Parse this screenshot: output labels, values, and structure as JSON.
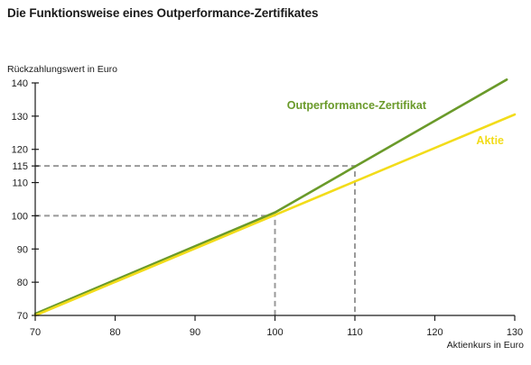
{
  "page": {
    "title": "Die Funktionsweise eines Outperformance-Zertifikates"
  },
  "chart_data": {
    "type": "line",
    "title": "Die Funktionsweise eines Outperformance-Zertifikates",
    "xlabel": "Aktienkurs in Euro",
    "ylabel": "Rückzahlungswert in Euro",
    "xlim": [
      70,
      130
    ],
    "ylim": [
      70,
      140
    ],
    "x_ticks": [
      70,
      80,
      90,
      100,
      110,
      120,
      130
    ],
    "y_ticks": [
      70,
      80,
      90,
      100,
      110,
      115,
      120,
      130,
      140
    ],
    "x_tick_labels": [
      "70",
      "80",
      "90",
      "100",
      "110",
      "120",
      "130"
    ],
    "y_tick_labels": [
      "70",
      "80",
      "90",
      "100",
      "110",
      "115",
      "120",
      "130",
      "140"
    ],
    "grid": false,
    "series": [
      {
        "name": "Outperformance-Zertifikat",
        "color": "#6a9a2a",
        "points": [
          [
            70,
            70.5
          ],
          [
            100,
            101
          ],
          [
            129,
            141
          ]
        ]
      },
      {
        "name": "Aktie",
        "color": "#f2dc1a",
        "points": [
          [
            70,
            70
          ],
          [
            130,
            130.5
          ]
        ]
      }
    ],
    "reference_lines": [
      {
        "points": [
          [
            70,
            100
          ],
          [
            100,
            100
          ],
          [
            100,
            70
          ]
        ],
        "style": "dashed",
        "color": "#999999"
      },
      {
        "points": [
          [
            70,
            115
          ],
          [
            110,
            115
          ],
          [
            110,
            70
          ]
        ],
        "style": "dashed",
        "color": "#999999"
      }
    ]
  }
}
